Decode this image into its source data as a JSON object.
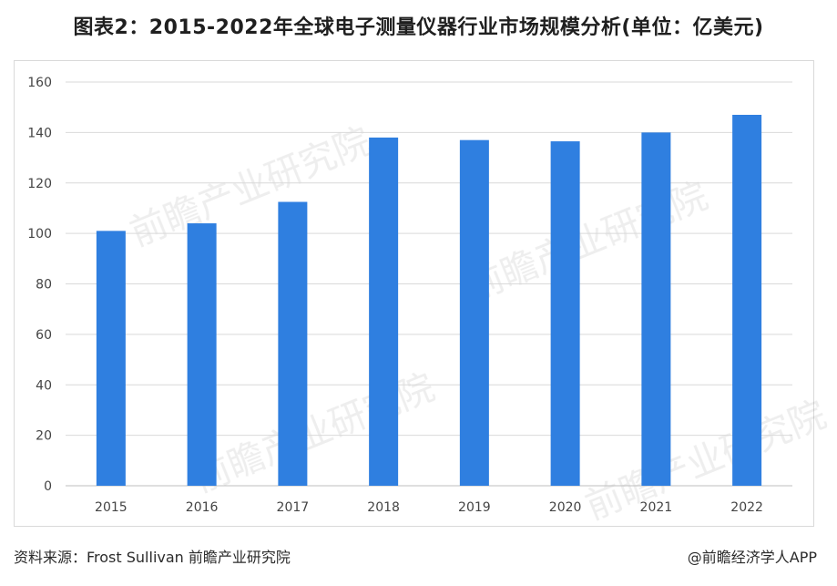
{
  "title": "图表2：2015-2022年全球电子测量仪器行业市场规模分析(单位：亿美元)",
  "watermark": "前瞻产业研究院",
  "footer": {
    "source": "资料来源：Frost Sullivan 前瞻产业研究院",
    "brand": "@前瞻经济学人APP"
  },
  "colors": {
    "bar": "#2f7fe0",
    "grid": "#d9d9d9",
    "axis": "#bfbfbf"
  },
  "chart_data": {
    "type": "bar",
    "categories": [
      "2015",
      "2016",
      "2017",
      "2018",
      "2019",
      "2020",
      "2021",
      "2022"
    ],
    "values": [
      101,
      104,
      112.5,
      138,
      137,
      136.5,
      140,
      147
    ],
    "ylim": [
      0,
      160
    ],
    "yticks": [
      0,
      20,
      40,
      60,
      80,
      100,
      120,
      140,
      160
    ],
    "grid": true,
    "legend": "none"
  }
}
